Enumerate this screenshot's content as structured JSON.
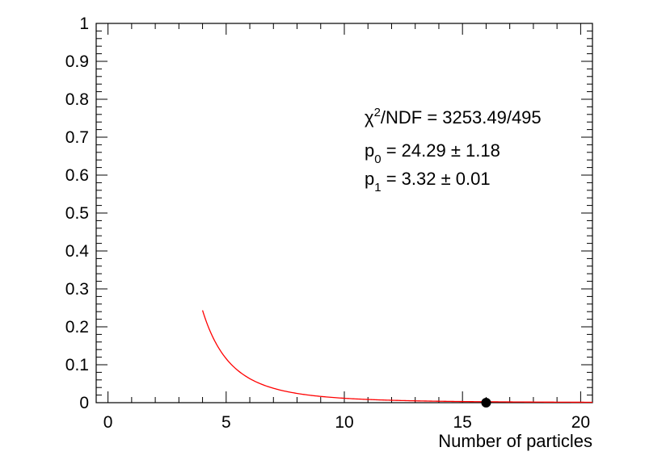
{
  "chart_data": {
    "type": "line",
    "title": "",
    "xlabel": "Number of particles",
    "ylabel": "",
    "xlim": [
      -0.5,
      20.5
    ],
    "ylim": [
      0,
      1
    ],
    "x_ticks": [
      "0",
      "5",
      "10",
      "15",
      "20"
    ],
    "y_ticks": [
      "0",
      "0.1",
      "0.2",
      "0.3",
      "0.4",
      "0.5",
      "0.6",
      "0.7",
      "0.8",
      "0.9",
      "1"
    ],
    "fit_function": {
      "form": "p0 * x^(-p1)",
      "p0": 24.29,
      "p1": 3.32,
      "x_range": [
        4,
        20.5
      ],
      "color": "#ff0000"
    },
    "series": [
      {
        "x": [
          16
        ],
        "y": [
          0.0
        ],
        "color": "#000000"
      }
    ],
    "fit_color": "#ff0000",
    "grid": false,
    "legend": "none",
    "stats_box": {
      "chi2_symbol": "χ",
      "chi2_sup": "2",
      "chi2_text": "/NDF = 3253.49/495",
      "p0_label": "p",
      "p0_sub": "0",
      "p0_text": " = 24.29 ± 1.18",
      "p1_label": "p",
      "p1_sub": "1",
      "p1_text": " = 3.32 ± 0.01"
    }
  }
}
